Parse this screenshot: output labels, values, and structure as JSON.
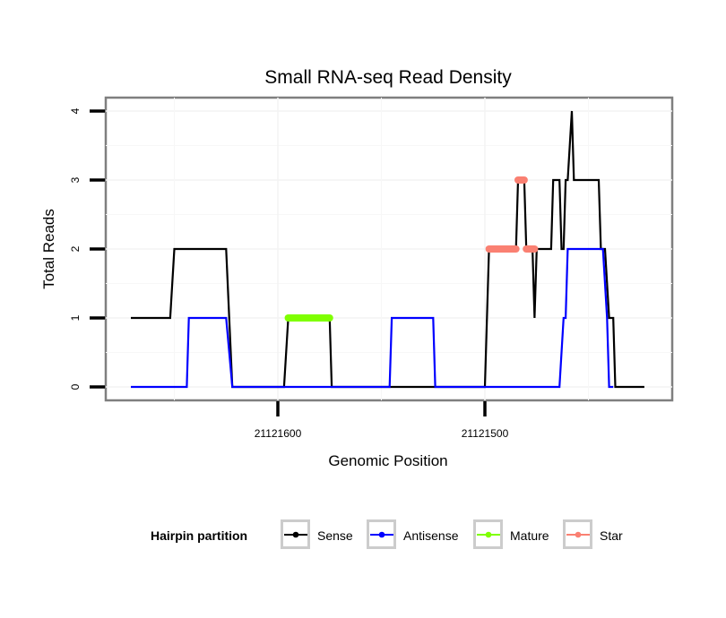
{
  "chart_data": {
    "type": "line",
    "title": "Small RNA-seq Read Density",
    "xlabel": "Genomic Position",
    "ylabel": "Total Reads",
    "x_reversed": true,
    "xlim": [
      21121684,
      21121410
    ],
    "ylim": [
      -0.2,
      4.2
    ],
    "x_ticks": [
      21121600,
      21121500
    ],
    "x_tick_labels": [
      "21121600",
      "21121500"
    ],
    "y_ticks": [
      0,
      1,
      2,
      3,
      4
    ],
    "y_tick_labels": [
      "0",
      "1",
      "2",
      "3",
      "4"
    ],
    "grid": true,
    "legend": {
      "title": "Hairpin partition",
      "placement": "bottom",
      "entries": [
        "Sense",
        "Antisense",
        "Mature",
        "Star"
      ]
    },
    "series": [
      {
        "name": "Sense",
        "color": "#000000",
        "points": [
          [
            21121671,
            1
          ],
          [
            21121652,
            1
          ],
          [
            21121650,
            2
          ],
          [
            21121625,
            2
          ],
          [
            21121622,
            0
          ],
          [
            21121597,
            0
          ],
          [
            21121595,
            1
          ],
          [
            21121575,
            1
          ],
          [
            21121574,
            0
          ],
          [
            21121500,
            0
          ],
          [
            21121498,
            2
          ],
          [
            21121485,
            2
          ],
          [
            21121484,
            3
          ],
          [
            21121481,
            3
          ],
          [
            21121480,
            2
          ],
          [
            21121477,
            2
          ],
          [
            21121476,
            1
          ],
          [
            21121475,
            2
          ],
          [
            21121468,
            2
          ],
          [
            21121467,
            3
          ],
          [
            21121464,
            3
          ],
          [
            21121463,
            2
          ],
          [
            21121462,
            2
          ],
          [
            21121461,
            3
          ],
          [
            21121460,
            3
          ],
          [
            21121458,
            4
          ],
          [
            21121457,
            3
          ],
          [
            21121445,
            3
          ],
          [
            21121444,
            2
          ],
          [
            21121442,
            2
          ],
          [
            21121440,
            1
          ],
          [
            21121438,
            1
          ],
          [
            21121437,
            0
          ],
          [
            21121423,
            0
          ]
        ]
      },
      {
        "name": "Antisense",
        "color": "#0000ff",
        "points": [
          [
            21121671,
            0
          ],
          [
            21121644,
            0
          ],
          [
            21121643,
            1
          ],
          [
            21121625,
            1
          ],
          [
            21121622,
            0
          ],
          [
            21121546,
            0
          ],
          [
            21121545,
            1
          ],
          [
            21121525,
            1
          ],
          [
            21121524,
            0
          ],
          [
            21121464,
            0
          ],
          [
            21121462,
            1
          ],
          [
            21121461,
            1
          ],
          [
            21121460,
            2
          ],
          [
            21121443,
            2
          ],
          [
            21121441,
            1
          ],
          [
            21121440,
            0
          ],
          [
            21121438,
            0
          ]
        ]
      },
      {
        "name": "Mature",
        "color": "#7fff00",
        "points": [
          [
            21121595,
            1
          ],
          [
            21121575,
            1
          ]
        ]
      },
      {
        "name": "Star",
        "color": "#fa8072",
        "segments": [
          [
            [
              21121498,
              2
            ],
            [
              21121485,
              2
            ]
          ],
          [
            [
              21121484,
              3
            ],
            [
              21121481,
              3
            ]
          ],
          [
            [
              21121480,
              2
            ],
            [
              21121476,
              2
            ]
          ]
        ]
      }
    ]
  }
}
